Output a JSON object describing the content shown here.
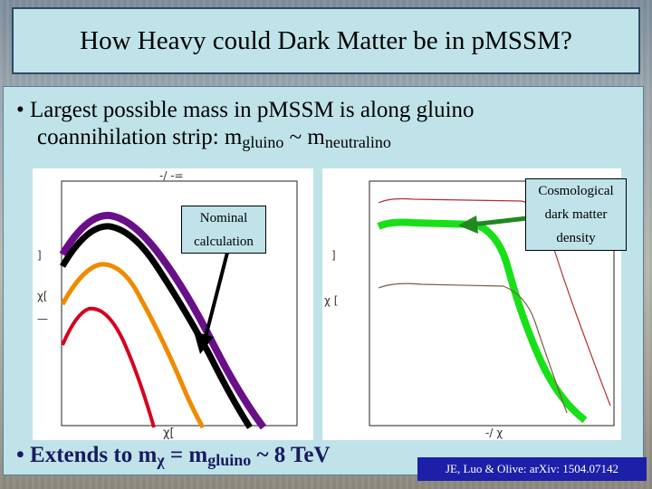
{
  "title": "How Heavy could Dark Matter be in p​MSSM?",
  "bullet1": {
    "marker": "•",
    "text_a": "Largest possible mass in pMSSM is along gluino",
    "text_b": "coannihilation strip: m",
    "sub_gluino": "gluino",
    "tilde": " ~ m",
    "sub_neutralino": "neutralino"
  },
  "bullet2": {
    "marker": "•",
    "text_a": "Extends to m",
    "chi": "χ",
    "eq": " = m",
    "sub_gluino": "gluino",
    "rest": " ~ 8 TeV"
  },
  "callout_nominal": {
    "line1": "Nominal",
    "line2": "calculation"
  },
  "callout_cosmo": {
    "line1": "Cosmological",
    "line2": "dark matter",
    "line3": "density"
  },
  "reference": "JE, Luo & Olive: arXiv: 1504.07142",
  "left_plot": {
    "top_label": "-/  -=",
    "x_label": "χ[",
    "y_label": "χ[",
    "y_ticks": [
      "]",
      "]",
      "—"
    ]
  },
  "right_plot": {
    "x_label": "-/   χ",
    "y_label": "χ [",
    "y_ticks": [
      "]",
      "]"
    ]
  },
  "colors": {
    "purple": "#6a0f8a",
    "black": "#000000",
    "orange": "#f08a00",
    "red": "#d6001c",
    "green": "#18e018",
    "darkred": "#b03030",
    "brown": "#7a5a40",
    "arrow_green": "#1f8a1f"
  }
}
